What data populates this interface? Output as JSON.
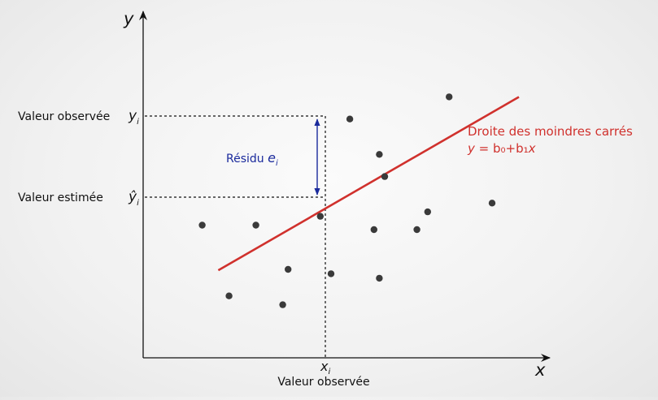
{
  "axes": {
    "y_label": "y",
    "x_label": "x"
  },
  "labels": {
    "observed_value": "Valeur observée",
    "estimated_value": "Valeur estimée",
    "observed_x": "Valeur observée",
    "y_i": "y",
    "y_hat_i": "ŷ",
    "x_i": "x",
    "subscript_i": "i",
    "residual": "Résidu",
    "residual_symbol": "e",
    "regression_title": "Droite des moindres carrés",
    "regression_eq_lhs": "y",
    "regression_eq_rhs": " = b₀+b₁",
    "regression_eq_x": "x"
  },
  "colors": {
    "regression_line": "#d0312d",
    "residual_arrow": "#1a2a9c",
    "points": "#3a3a3a",
    "axes": "#111111"
  },
  "chart_data": {
    "type": "scatter",
    "points": [
      [
        1.1,
        3.0
      ],
      [
        1.6,
        1.4
      ],
      [
        2.1,
        3.0
      ],
      [
        2.6,
        1.2
      ],
      [
        2.7,
        2.0
      ],
      [
        3.3,
        3.2
      ],
      [
        3.5,
        1.9
      ],
      [
        3.85,
        5.4
      ],
      [
        4.3,
        2.9
      ],
      [
        4.4,
        4.6
      ],
      [
        4.4,
        1.8
      ],
      [
        4.5,
        4.1
      ],
      [
        5.1,
        2.9
      ],
      [
        5.3,
        3.3
      ],
      [
        5.7,
        5.9
      ],
      [
        6.5,
        3.5
      ]
    ],
    "highlight_index": 7,
    "regression": {
      "x_start": 1.4,
      "x_end": 7.0,
      "b0": 1.0,
      "b1": 0.7
    }
  }
}
